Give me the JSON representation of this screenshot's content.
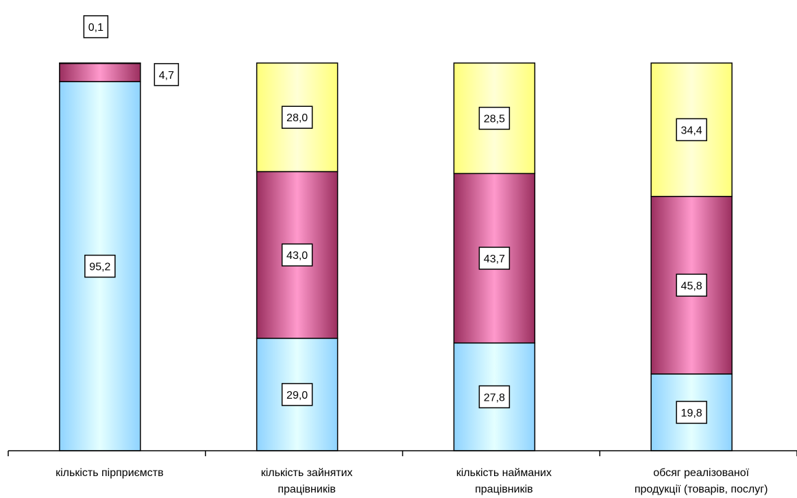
{
  "chart_data": {
    "type": "bar",
    "stacked": true,
    "percent_stacked": true,
    "categories": [
      [
        "кількість пірприємств"
      ],
      [
        "кількість зайнятих",
        "працівників"
      ],
      [
        "кількість найманих",
        "працівників"
      ],
      [
        "обсяг реалізованої",
        "продукції (товарів, послуг)"
      ]
    ],
    "series": [
      {
        "values": [
          95.2,
          29.0,
          27.8,
          19.8
        ],
        "labels": [
          "95,2",
          "29,0",
          "27,8",
          "19,8"
        ],
        "color": "#b9e6ff"
      },
      {
        "values": [
          4.7,
          43.0,
          43.7,
          45.8
        ],
        "labels": [
          "4,7",
          "43,0",
          "43,7",
          "45,8"
        ],
        "color": "#c0457f"
      },
      {
        "values": [
          0.1,
          28.0,
          28.5,
          34.4
        ],
        "labels": [
          "0,1",
          "28,0",
          "28,5",
          "34,4"
        ],
        "color": "#ffff99"
      }
    ],
    "ylim": [
      0,
      100
    ],
    "grid": false,
    "legend": "none"
  }
}
